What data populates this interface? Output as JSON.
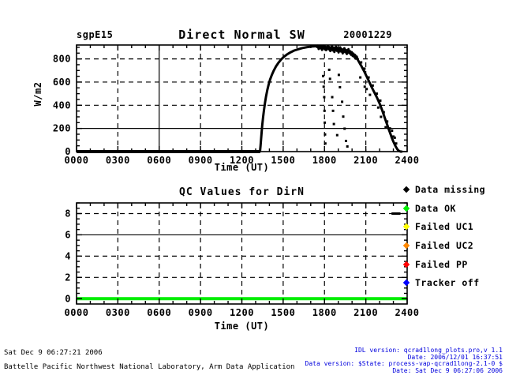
{
  "header": {
    "site": "sgpE15",
    "date": "20001229"
  },
  "colors": {
    "background": "#ffffff",
    "plot": "#000000",
    "ok_green": "#00ee00",
    "fail_yellow": "#ffff00",
    "fail_orange": "#ff8800",
    "fail_red": "#ff0000",
    "tracker_blue": "#0000ff",
    "footer_blue": "#0000dd"
  },
  "legend": {
    "items": [
      {
        "name": "data-missing",
        "label": "Data missing",
        "color": "#000000"
      },
      {
        "name": "data-ok",
        "label": "Data OK",
        "color": "#00ee00"
      },
      {
        "name": "failed-uc1",
        "label": "Failed UC1",
        "color": "#ffff00"
      },
      {
        "name": "failed-uc2",
        "label": "Failed UC2",
        "color": "#ff8800"
      },
      {
        "name": "failed-pp",
        "label": "Failed PP",
        "color": "#ff0000"
      },
      {
        "name": "tracker-off",
        "label": "Tracker off",
        "color": "#0000ff"
      }
    ]
  },
  "footer": {
    "left_line1": "Sat Dec  9 06:27:21 2006",
    "left_line2": "Battelle Pacific Northwest National Laboratory, Arm Data Application",
    "right_lines": [
      "IDL version: qcrad1long_plots.pro,v 1.1",
      "Date: 2006/12/01 16:37:51",
      "Data version: $State: process-vap-qcrad1long-2.1-0 $",
      "Date: Sat Dec  9 06:27:06 2006"
    ]
  },
  "chart_data": [
    {
      "type": "scatter",
      "title": "Direct Normal SW",
      "xlabel": "Time (UT)",
      "ylabel": "W/m2",
      "xlim": [
        0,
        24
      ],
      "ylim": [
        0,
        920
      ],
      "xticks": {
        "values": [
          0,
          3,
          6,
          9,
          12,
          15,
          18,
          21,
          24
        ],
        "labels": [
          "0000",
          "0300",
          "0600",
          "0900",
          "1200",
          "1500",
          "1800",
          "2100",
          "2400"
        ]
      },
      "yticks": {
        "values": [
          0,
          200,
          400,
          600,
          800
        ],
        "labels": [
          "0",
          "200",
          "400",
          "600",
          "800"
        ]
      },
      "x_minor_step": 1,
      "y_minor_step": 50,
      "grid": {
        "x_dashed": [
          3,
          9,
          12,
          15,
          18,
          21
        ],
        "x_solid": [
          6
        ],
        "y_dashed": [
          400,
          600,
          800
        ],
        "y_solid": [
          200
        ]
      },
      "series": [
        {
          "name": "night-zero",
          "style": "thick-line",
          "color": "#000000",
          "width": 4,
          "points": [
            [
              0,
              0
            ],
            [
              13.34,
              0
            ]
          ]
        },
        {
          "name": "direct-normal",
          "style": "line",
          "color": "#000000",
          "width": 3,
          "points": [
            [
              13.32,
              0
            ],
            [
              13.36,
              50
            ],
            [
              13.4,
              110
            ],
            [
              13.44,
              170
            ],
            [
              13.48,
              225
            ],
            [
              13.54,
              295
            ],
            [
              13.6,
              350
            ],
            [
              13.68,
              420
            ],
            [
              13.76,
              478
            ],
            [
              13.85,
              532
            ],
            [
              13.95,
              580
            ],
            [
              14.05,
              622
            ],
            [
              14.18,
              664
            ],
            [
              14.32,
              700
            ],
            [
              14.48,
              736
            ],
            [
              14.65,
              766
            ],
            [
              14.85,
              795
            ],
            [
              15.05,
              818
            ],
            [
              15.3,
              840
            ],
            [
              15.55,
              858
            ],
            [
              15.8,
              872
            ],
            [
              16.1,
              884
            ],
            [
              16.4,
              894
            ],
            [
              16.75,
              902
            ],
            [
              17.1,
              907
            ],
            [
              17.4,
              910
            ],
            [
              17.46,
              903
            ],
            [
              17.52,
              913
            ],
            [
              17.58,
              886
            ],
            [
              17.64,
              908
            ],
            [
              17.7,
              893
            ],
            [
              17.76,
              912
            ],
            [
              17.82,
              878
            ],
            [
              17.88,
              904
            ],
            [
              17.94,
              914
            ],
            [
              18.0,
              888
            ],
            [
              18.06,
              906
            ],
            [
              18.12,
              876
            ],
            [
              18.18,
              900
            ],
            [
              18.24,
              912
            ],
            [
              18.3,
              884
            ],
            [
              18.36,
              902
            ],
            [
              18.42,
              868
            ],
            [
              18.48,
              896
            ],
            [
              18.54,
              908
            ],
            [
              18.6,
              874
            ],
            [
              18.66,
              898
            ],
            [
              18.72,
              860
            ],
            [
              18.78,
              892
            ],
            [
              18.84,
              906
            ],
            [
              18.9,
              870
            ],
            [
              18.96,
              894
            ],
            [
              19.02,
              856
            ],
            [
              19.08,
              886
            ],
            [
              19.14,
              900
            ],
            [
              19.2,
              864
            ],
            [
              19.26,
              884
            ],
            [
              19.32,
              848
            ],
            [
              19.38,
              876
            ],
            [
              19.44,
              892
            ],
            [
              19.5,
              858
            ],
            [
              19.56,
              878
            ],
            [
              19.62,
              842
            ],
            [
              19.68,
              868
            ],
            [
              19.74,
              884
            ],
            [
              19.8,
              850
            ],
            [
              19.86,
              866
            ],
            [
              19.92,
              836
            ],
            [
              19.98,
              858
            ],
            [
              20.04,
              826
            ],
            [
              20.1,
              846
            ],
            [
              20.16,
              816
            ],
            [
              20.22,
              834
            ],
            [
              20.28,
              802
            ],
            [
              20.34,
              820
            ],
            [
              20.42,
              792
            ],
            [
              20.5,
              775
            ],
            [
              20.58,
              758
            ],
            [
              20.66,
              742
            ],
            [
              20.74,
              724
            ],
            [
              20.82,
              706
            ],
            [
              20.9,
              688
            ],
            [
              20.98,
              668
            ],
            [
              21.06,
              648
            ],
            [
              21.14,
              628
            ],
            [
              21.22,
              608
            ],
            [
              21.3,
              588
            ],
            [
              21.4,
              562
            ],
            [
              21.5,
              538
            ],
            [
              21.6,
              515
            ],
            [
              21.7,
              492
            ],
            [
              21.8,
              468
            ],
            [
              21.9,
              442
            ],
            [
              22.0,
              415
            ],
            [
              22.08,
              390
            ],
            [
              22.16,
              365
            ],
            [
              22.24,
              338
            ],
            [
              22.32,
              310
            ],
            [
              22.4,
              282
            ],
            [
              22.48,
              255
            ],
            [
              22.56,
              228
            ],
            [
              22.64,
              200
            ],
            [
              22.72,
              174
            ],
            [
              22.8,
              148
            ],
            [
              22.88,
              122
            ],
            [
              22.96,
              98
            ],
            [
              23.04,
              76
            ],
            [
              23.12,
              56
            ],
            [
              23.2,
              38
            ],
            [
              23.28,
              22
            ],
            [
              23.36,
              10
            ],
            [
              23.44,
              4
            ],
            [
              23.52,
              0
            ],
            [
              23.65,
              0
            ]
          ]
        },
        {
          "name": "cloud-dropouts",
          "style": "points",
          "color": "#000000",
          "size": 3,
          "points": [
            [
              17.9,
              652
            ],
            [
              17.94,
              560
            ],
            [
              17.98,
              470
            ],
            [
              18.0,
              352
            ],
            [
              18.02,
              250
            ],
            [
              18.04,
              148
            ],
            [
              18.06,
              70
            ],
            [
              18.34,
              706
            ],
            [
              18.4,
              628
            ],
            [
              18.56,
              470
            ],
            [
              18.62,
              352
            ],
            [
              18.68,
              238
            ],
            [
              18.92,
              142
            ],
            [
              19.04,
              662
            ],
            [
              19.12,
              556
            ],
            [
              19.28,
              430
            ],
            [
              19.36,
              302
            ],
            [
              19.46,
              198
            ],
            [
              19.56,
              92
            ],
            [
              19.66,
              44
            ],
            [
              20.6,
              640
            ],
            [
              20.66,
              770
            ],
            [
              20.9,
              716
            ],
            [
              20.92,
              560
            ],
            [
              21.06,
              540
            ],
            [
              21.2,
              640
            ],
            [
              21.3,
              490
            ],
            [
              21.5,
              570
            ],
            [
              21.8,
              500
            ],
            [
              21.9,
              380
            ],
            [
              22.05,
              440
            ],
            [
              22.1,
              300
            ],
            [
              22.3,
              340
            ],
            [
              22.44,
              210
            ],
            [
              22.55,
              260
            ],
            [
              22.75,
              200
            ],
            [
              22.9,
              180
            ],
            [
              23.0,
              130
            ],
            [
              23.1,
              120
            ],
            [
              23.2,
              70
            ]
          ]
        }
      ]
    },
    {
      "type": "scatter",
      "title": "QC Values for DirN",
      "xlabel": "Time (UT)",
      "ylabel": "",
      "xlim": [
        0,
        24
      ],
      "ylim": [
        -0.5,
        9
      ],
      "xticks": {
        "values": [
          0,
          3,
          6,
          9,
          12,
          15,
          18,
          21,
          24
        ],
        "labels": [
          "0000",
          "0300",
          "0600",
          "0900",
          "1200",
          "1500",
          "1800",
          "2100",
          "2400"
        ]
      },
      "yticks": {
        "values": [
          0,
          2,
          4,
          6,
          8
        ],
        "labels": [
          "0",
          "2",
          "4",
          "6",
          "8"
        ]
      },
      "x_minor_step": 1,
      "y_minor_step": 0.5,
      "grid": {
        "x_dashed": [
          3,
          6,
          9,
          12,
          15,
          18,
          21
        ],
        "x_solid": [],
        "y_dashed": [
          2,
          4,
          8
        ],
        "y_solid": [
          6
        ]
      },
      "series": [
        {
          "name": "qc-data-ok",
          "style": "thick-line",
          "color": "#00ee00",
          "width": 4,
          "points": [
            [
              0,
              0
            ],
            [
              24,
              0
            ]
          ]
        },
        {
          "name": "qc-data-missing",
          "style": "points",
          "color": "#000000",
          "size": 3,
          "points": [
            [
              22.95,
              8
            ],
            [
              23.03,
              8
            ],
            [
              23.11,
              8
            ],
            [
              23.19,
              8
            ],
            [
              23.27,
              8
            ],
            [
              23.35,
              8
            ],
            [
              23.43,
              8
            ]
          ]
        }
      ]
    }
  ]
}
